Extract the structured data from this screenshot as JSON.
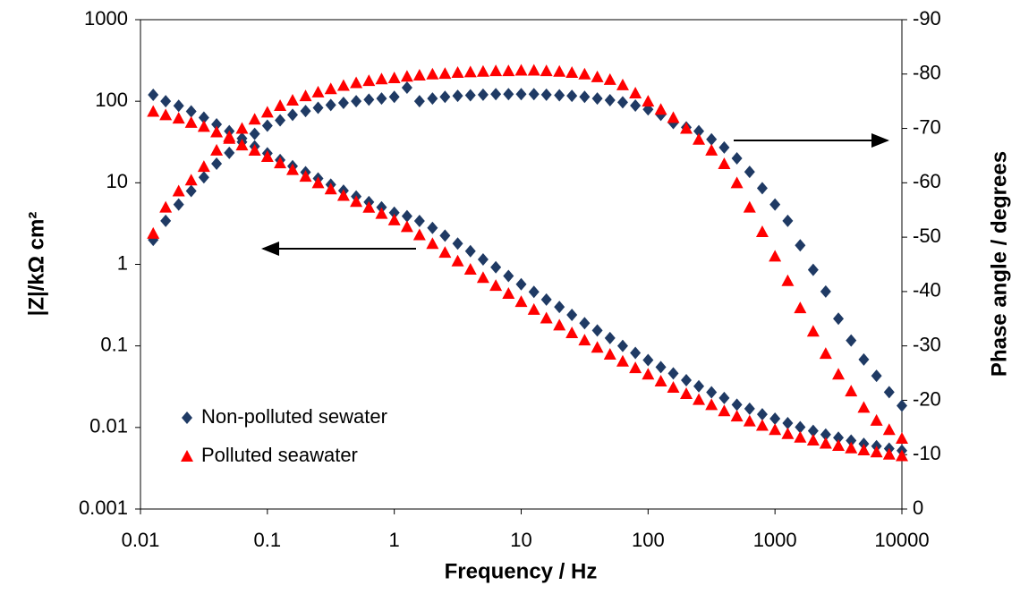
{
  "chart_data": {
    "type": "scatter",
    "x_label": "Frequency / Hz",
    "y_label": "|Z|/kΩ cm²",
    "y2_label": "Phase angle / degrees",
    "xscale": "log",
    "yscale": "log",
    "xlim": [
      0.01,
      10000
    ],
    "xticks": [
      0.01,
      0.1,
      1,
      10,
      100,
      1000,
      10000
    ],
    "ylim": [
      0.001,
      1000
    ],
    "yticks": [
      0.001,
      0.01,
      0.1,
      1,
      10,
      100,
      1000
    ],
    "y2lim": [
      0,
      -90
    ],
    "y2ticks": [
      0,
      -10,
      -20,
      -30,
      -40,
      -50,
      -60,
      -70,
      -80,
      -90
    ],
    "legend": "lower left",
    "x": [
      0.0126,
      0.0158,
      0.02,
      0.0251,
      0.0316,
      0.0398,
      0.0501,
      0.0631,
      0.0794,
      0.1,
      0.126,
      0.158,
      0.2,
      0.251,
      0.316,
      0.398,
      0.501,
      0.631,
      0.794,
      1,
      1.26,
      1.58,
      2,
      2.51,
      3.16,
      3.98,
      5.01,
      6.31,
      7.94,
      10,
      12.6,
      15.8,
      20,
      25.1,
      31.6,
      39.8,
      50.1,
      63.1,
      79.4,
      100,
      126,
      158,
      200,
      251,
      316,
      398,
      501,
      631,
      794,
      1000,
      1260,
      1580,
      2000,
      2510,
      3160,
      3980,
      5010,
      6310,
      7940,
      10000
    ],
    "series": [
      {
        "name": "Non-polluted sewater",
        "color": "#1f3a64",
        "marker": "diamond",
        "values": [
          120,
          100,
          88,
          75,
          63,
          52,
          43,
          35,
          28,
          23,
          19,
          16,
          13.5,
          11.3,
          9.5,
          8,
          6.8,
          5.8,
          5,
          4.3,
          3.9,
          3.4,
          2.8,
          2.25,
          1.8,
          1.45,
          1.15,
          0.92,
          0.72,
          0.57,
          0.46,
          0.37,
          0.3,
          0.24,
          0.19,
          0.155,
          0.125,
          0.1,
          0.082,
          0.067,
          0.055,
          0.046,
          0.038,
          0.032,
          0.027,
          0.023,
          0.019,
          0.017,
          0.0145,
          0.0128,
          0.0113,
          0.0101,
          0.0091,
          0.0082,
          0.0075,
          0.0069,
          0.0063,
          0.0059,
          0.0055,
          0.0052
        ],
        "y2_values": [
          -49.5,
          -53,
          -56,
          -58.5,
          -61,
          -63.5,
          -65.5,
          -67.5,
          -69,
          -70.5,
          -71.5,
          -72.5,
          -73.2,
          -73.8,
          -74.3,
          -74.7,
          -75,
          -75.3,
          -75.5,
          -75.8,
          -77.5,
          -75,
          -75.5,
          -75.8,
          -76,
          -76.1,
          -76.2,
          -76.3,
          -76.3,
          -76.3,
          -76.3,
          -76.2,
          -76.1,
          -76,
          -75.8,
          -75.5,
          -75.2,
          -74.8,
          -74.2,
          -73.5,
          -72.5,
          -71,
          -70.2,
          -69.5,
          -68,
          -66.5,
          -64.5,
          -62,
          -59,
          -56,
          -53,
          -48.5,
          -44,
          -40,
          -35,
          -31,
          -27.5,
          -24.5,
          -21.5,
          -19
        ]
      },
      {
        "name": "Polluted seawater",
        "color": "#ff0000",
        "marker": "triangle",
        "values": [
          75,
          68,
          62,
          55,
          49,
          42,
          35,
          29,
          25,
          21,
          17.5,
          14.5,
          12,
          10,
          8.4,
          7,
          5.9,
          5,
          4.2,
          3.5,
          2.9,
          2.3,
          1.8,
          1.4,
          1.1,
          0.87,
          0.69,
          0.55,
          0.44,
          0.35,
          0.28,
          0.22,
          0.18,
          0.145,
          0.118,
          0.096,
          0.079,
          0.065,
          0.054,
          0.045,
          0.037,
          0.031,
          0.026,
          0.022,
          0.019,
          0.016,
          0.0138,
          0.012,
          0.0106,
          0.0094,
          0.0084,
          0.0076,
          0.007,
          0.0064,
          0.006,
          0.0056,
          0.0053,
          0.005,
          0.0047,
          0.0045
        ],
        "y2_values": [
          -50.7,
          -55.5,
          -58.5,
          -60.5,
          -63,
          -66,
          -68.5,
          -70,
          -71.7,
          -73,
          -74.2,
          -75.2,
          -76,
          -76.7,
          -77.3,
          -77.9,
          -78.4,
          -78.8,
          -79.1,
          -79.3,
          -79.6,
          -79.8,
          -80,
          -80.1,
          -80.3,
          -80.4,
          -80.5,
          -80.6,
          -80.6,
          -80.7,
          -80.7,
          -80.6,
          -80.5,
          -80.3,
          -80,
          -79.5,
          -79,
          -78,
          -76.5,
          -75,
          -73.5,
          -72,
          -70,
          -68,
          -66,
          -63.5,
          -60,
          -55.5,
          -51,
          -46.5,
          -42,
          -37,
          -32.7,
          -28.6,
          -24.8,
          -21.7,
          -18.7,
          -16.3,
          -14.6,
          -13
        ]
      }
    ]
  }
}
